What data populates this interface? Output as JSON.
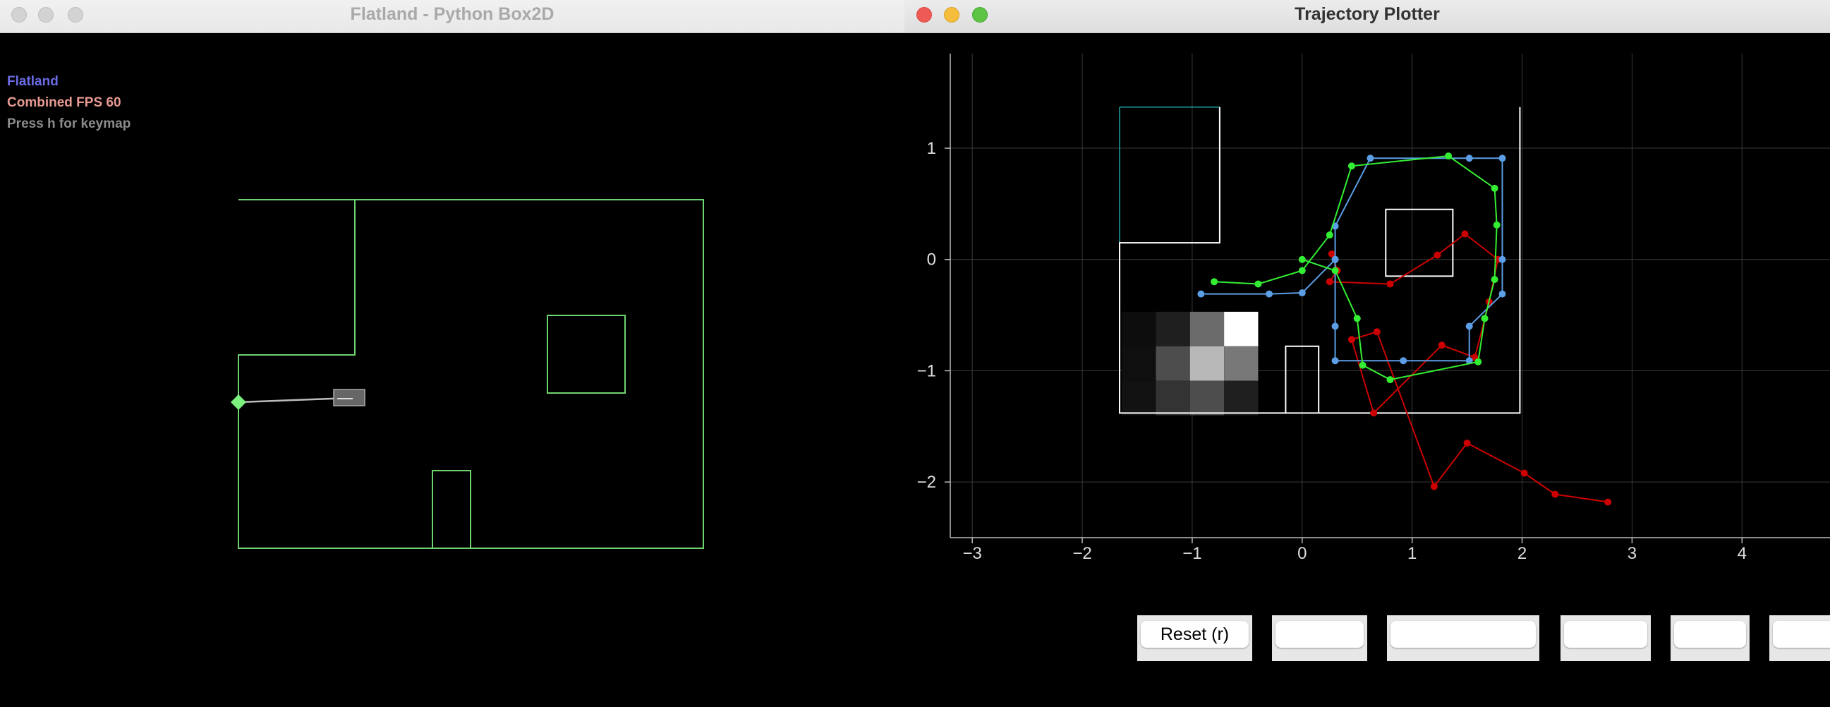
{
  "left_window": {
    "title": "Flatland - Python Box2D",
    "hud": {
      "title": "Flatland",
      "fps": "Combined FPS 60",
      "help": "Press h for keymap"
    },
    "colors": {
      "walls": "#6fd36f",
      "robot_marker": "#7cf07c",
      "robot_body": "#777777"
    }
  },
  "right_window": {
    "title": "Trajectory Plotter",
    "buttons": [
      {
        "label": "Reset (r)"
      },
      {
        "label": ""
      },
      {
        "label": ""
      },
      {
        "label": ""
      },
      {
        "label": ""
      },
      {
        "label": ""
      }
    ]
  },
  "chart_data": {
    "type": "line",
    "title": "",
    "xlabel": "",
    "ylabel": "",
    "xlim": [
      -3.2,
      4.8
    ],
    "ylim": [
      -2.5,
      1.85
    ],
    "grid": true,
    "xticks": [
      -3,
      -2,
      -1,
      0,
      1,
      2,
      3,
      4
    ],
    "yticks": [
      -2,
      -1,
      0,
      1
    ],
    "series": [
      {
        "color": "#cc0000",
        "points": [
          [
            0.27,
            0.05
          ],
          [
            0.32,
            -0.1
          ],
          [
            0.25,
            -0.2
          ],
          [
            0.8,
            -0.22
          ],
          [
            1.23,
            0.04
          ],
          [
            1.48,
            0.23
          ],
          [
            1.78,
            0.0
          ],
          [
            1.7,
            -0.38
          ],
          [
            1.57,
            -0.88
          ],
          [
            1.27,
            -0.77
          ],
          [
            0.65,
            -1.38
          ],
          [
            0.45,
            -0.72
          ],
          [
            0.68,
            -0.65
          ],
          [
            1.2,
            -2.04
          ],
          [
            1.5,
            -1.65
          ],
          [
            2.02,
            -1.92
          ],
          [
            2.3,
            -2.11
          ],
          [
            2.78,
            -2.18
          ]
        ]
      },
      {
        "color": "#5b9ee6",
        "points": [
          [
            -0.92,
            -0.31
          ],
          [
            -0.3,
            -0.31
          ],
          [
            0.0,
            -0.3
          ],
          [
            0.3,
            0.0
          ],
          [
            0.3,
            -0.6
          ],
          [
            0.3,
            -0.91
          ],
          [
            0.92,
            -0.91
          ],
          [
            1.52,
            -0.91
          ],
          [
            1.52,
            -0.6
          ],
          [
            1.82,
            -0.31
          ],
          [
            1.82,
            0.0
          ],
          [
            1.82,
            0.91
          ],
          [
            1.52,
            0.91
          ],
          [
            0.62,
            0.91
          ],
          [
            0.3,
            0.3
          ],
          [
            0.3,
            0.0
          ]
        ]
      },
      {
        "color": "#33ee33",
        "points": [
          [
            -0.8,
            -0.2
          ],
          [
            -0.4,
            -0.22
          ],
          [
            0.0,
            -0.1
          ],
          [
            0.25,
            0.22
          ],
          [
            0.45,
            0.84
          ],
          [
            1.33,
            0.93
          ],
          [
            1.75,
            0.64
          ],
          [
            1.77,
            0.31
          ],
          [
            1.75,
            -0.18
          ],
          [
            1.66,
            -0.53
          ],
          [
            1.6,
            -0.92
          ],
          [
            0.8,
            -1.08
          ],
          [
            0.55,
            -0.95
          ],
          [
            0.5,
            -0.53
          ],
          [
            0.3,
            -0.1
          ],
          [
            0.0,
            0.0
          ]
        ]
      }
    ],
    "occupancy": {
      "cells": [
        [
          -1.64,
          -0.47,
          0.05
        ],
        [
          -1.33,
          -0.47,
          0.12
        ],
        [
          -1.02,
          -0.47,
          0.42
        ],
        [
          -0.71,
          -0.47,
          1.0
        ],
        [
          -1.64,
          -0.78,
          0.06
        ],
        [
          -1.33,
          -0.78,
          0.3
        ],
        [
          -1.02,
          -0.78,
          0.72
        ],
        [
          -0.71,
          -0.78,
          0.47
        ],
        [
          -1.64,
          -1.09,
          0.07
        ],
        [
          -1.33,
          -1.09,
          0.2
        ],
        [
          -1.02,
          -1.09,
          0.3
        ],
        [
          -0.71,
          -1.09,
          0.12
        ]
      ]
    },
    "map_outline": {
      "outer": [
        [
          -1.66,
          1.37
        ],
        [
          1.98,
          1.37
        ],
        [
          1.98,
          -1.38
        ],
        [
          -1.66,
          -1.38
        ],
        [
          -1.66,
          0.15
        ],
        [
          -0.75,
          0.15
        ],
        [
          -0.75,
          1.37
        ]
      ],
      "inner_box": [
        [
          0.76,
          0.45
        ],
        [
          1.37,
          0.45
        ],
        [
          1.37,
          -0.15
        ],
        [
          0.76,
          -0.15
        ]
      ],
      "pillar": [
        [
          -0.15,
          -1.38
        ],
        [
          -0.15,
          -0.78
        ],
        [
          0.15,
          -0.78
        ],
        [
          0.15,
          -1.38
        ]
      ],
      "corner_region": [
        [
          -1.66,
          1.37
        ],
        [
          -0.75,
          1.37
        ],
        [
          -1.66,
          0.15
        ]
      ]
    }
  }
}
